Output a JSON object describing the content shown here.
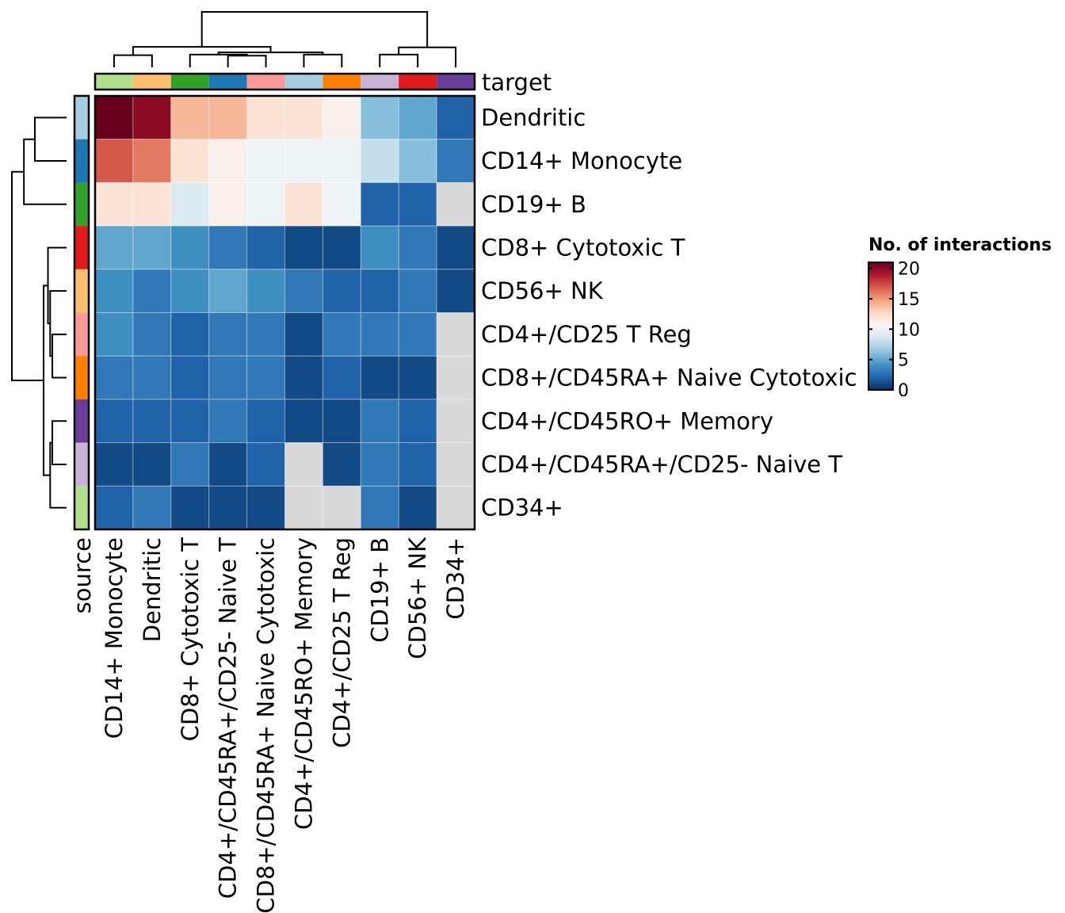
{
  "chart_data": {
    "type": "heatmap",
    "title": "",
    "row_annotation_label": "source",
    "col_annotation_label": "target",
    "rows": [
      "Dendritic",
      "CD14+ Monocyte",
      "CD19+ B",
      "CD8+ Cytotoxic T",
      "CD56+ NK",
      "CD4+/CD25 T Reg",
      "CD8+/CD45RA+ Naive Cytotoxic",
      "CD4+/CD45RO+ Memory",
      "CD4+/CD45RA+/CD25- Naive T",
      "CD34+"
    ],
    "columns": [
      "CD14+ Monocyte",
      "Dendritic",
      "CD8+ Cytotoxic T",
      "CD4+/CD45RA+/CD25- Naive T",
      "CD8+/CD45RA+ Naive Cytotoxic",
      "CD4+/CD45RO+ Memory",
      "CD4+/CD25 T Reg",
      "CD19+ B",
      "CD56+ NK",
      "CD34+"
    ],
    "values": [
      [
        21,
        20,
        14,
        14,
        12,
        12,
        11,
        6,
        5,
        2
      ],
      [
        17,
        16,
        12,
        11,
        10,
        10,
        10,
        8,
        6,
        3
      ],
      [
        12,
        12,
        9,
        11,
        10,
        12,
        10,
        2,
        2,
        null
      ],
      [
        5,
        5,
        4,
        3,
        2,
        1,
        1,
        4,
        3,
        1
      ],
      [
        4,
        3,
        4,
        5,
        4,
        3,
        2,
        2,
        3,
        1
      ],
      [
        4,
        3,
        2,
        3,
        3,
        1,
        3,
        3,
        3,
        null
      ],
      [
        3,
        3,
        2,
        3,
        3,
        1,
        2,
        1,
        1,
        null
      ],
      [
        2,
        2,
        2,
        3,
        2,
        1,
        1,
        3,
        2,
        null
      ],
      [
        1,
        1,
        3,
        1,
        2,
        null,
        1,
        3,
        2,
        null
      ],
      [
        2,
        3,
        1,
        1,
        1,
        null,
        null,
        3,
        1,
        null
      ]
    ],
    "missing_color": "#d9d9d9",
    "row_annotation_colors": [
      "#a6cee3",
      "#1f78b4",
      "#33a02c",
      "#e31a1c",
      "#fdbf6f",
      "#fb9a99",
      "#ff7f00",
      "#6a3d9a",
      "#cab2d6",
      "#b2df8a"
    ],
    "col_annotation_colors": [
      "#b2df8a",
      "#fdbf6f",
      "#33a02c",
      "#1f78b4",
      "#fb9a99",
      "#a6cee3",
      "#ff7f00",
      "#cab2d6",
      "#e31a1c",
      "#6a3d9a"
    ],
    "colorbar": {
      "title": "No. of interactions",
      "range": [
        0,
        21
      ],
      "ticks": [
        "20",
        "15",
        "10",
        "5",
        "0"
      ],
      "tick_values": [
        20,
        15,
        10,
        5,
        0
      ],
      "colormap": "RdBu_r",
      "placement": "right"
    },
    "row_dendrogram": [
      [
        0,
        1,
        0.58
      ],
      [
        2,
        "a",
        0.78
      ],
      [
        5,
        6,
        0.26
      ],
      [
        4,
        "c",
        0.3
      ],
      [
        3,
        "d",
        0.34
      ],
      [
        7,
        8,
        0.26
      ],
      [
        9,
        "f",
        0.3
      ],
      [
        "e",
        "g",
        0.42
      ],
      [
        "b",
        "h",
        1.0
      ]
    ],
    "col_dendrogram": [
      [
        0,
        1,
        0.22
      ],
      [
        3,
        4,
        0.21
      ],
      [
        2,
        "b",
        0.23
      ],
      [
        5,
        6,
        0.23
      ],
      [
        "c",
        "d",
        0.27
      ],
      [
        "a",
        "e",
        0.37
      ],
      [
        7,
        8,
        0.23
      ],
      [
        9,
        "g",
        0.36
      ],
      [
        "f",
        "h",
        1.0
      ]
    ]
  }
}
